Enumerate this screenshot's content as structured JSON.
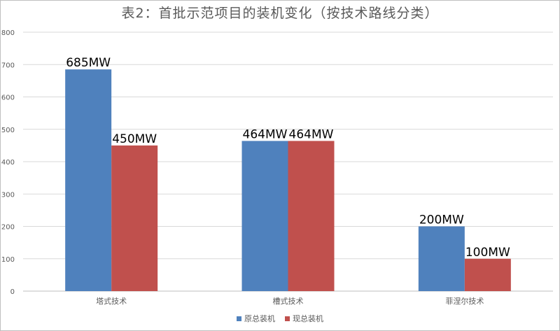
{
  "chart_data": {
    "type": "bar",
    "title": "表2：首批示范项目的装机变化（按技术路线分类）",
    "xlabel": "",
    "ylabel": "",
    "ylim": [
      0,
      800
    ],
    "yticks": [
      0,
      100,
      200,
      300,
      400,
      500,
      600,
      700,
      800
    ],
    "categories": [
      "塔式技术",
      "槽式技术",
      "菲涅尔技术"
    ],
    "series": [
      {
        "name": "原总装机",
        "color": "#4f81bd",
        "values": [
          685,
          464,
          200
        ],
        "labels": [
          "685MW",
          "464MW",
          "200MW"
        ]
      },
      {
        "name": "现总装机",
        "color": "#c0504d",
        "values": [
          450,
          464,
          100
        ],
        "labels": [
          "450MW",
          "464MW",
          "100MW"
        ]
      }
    ],
    "grid": true,
    "legend_position": "bottom"
  }
}
